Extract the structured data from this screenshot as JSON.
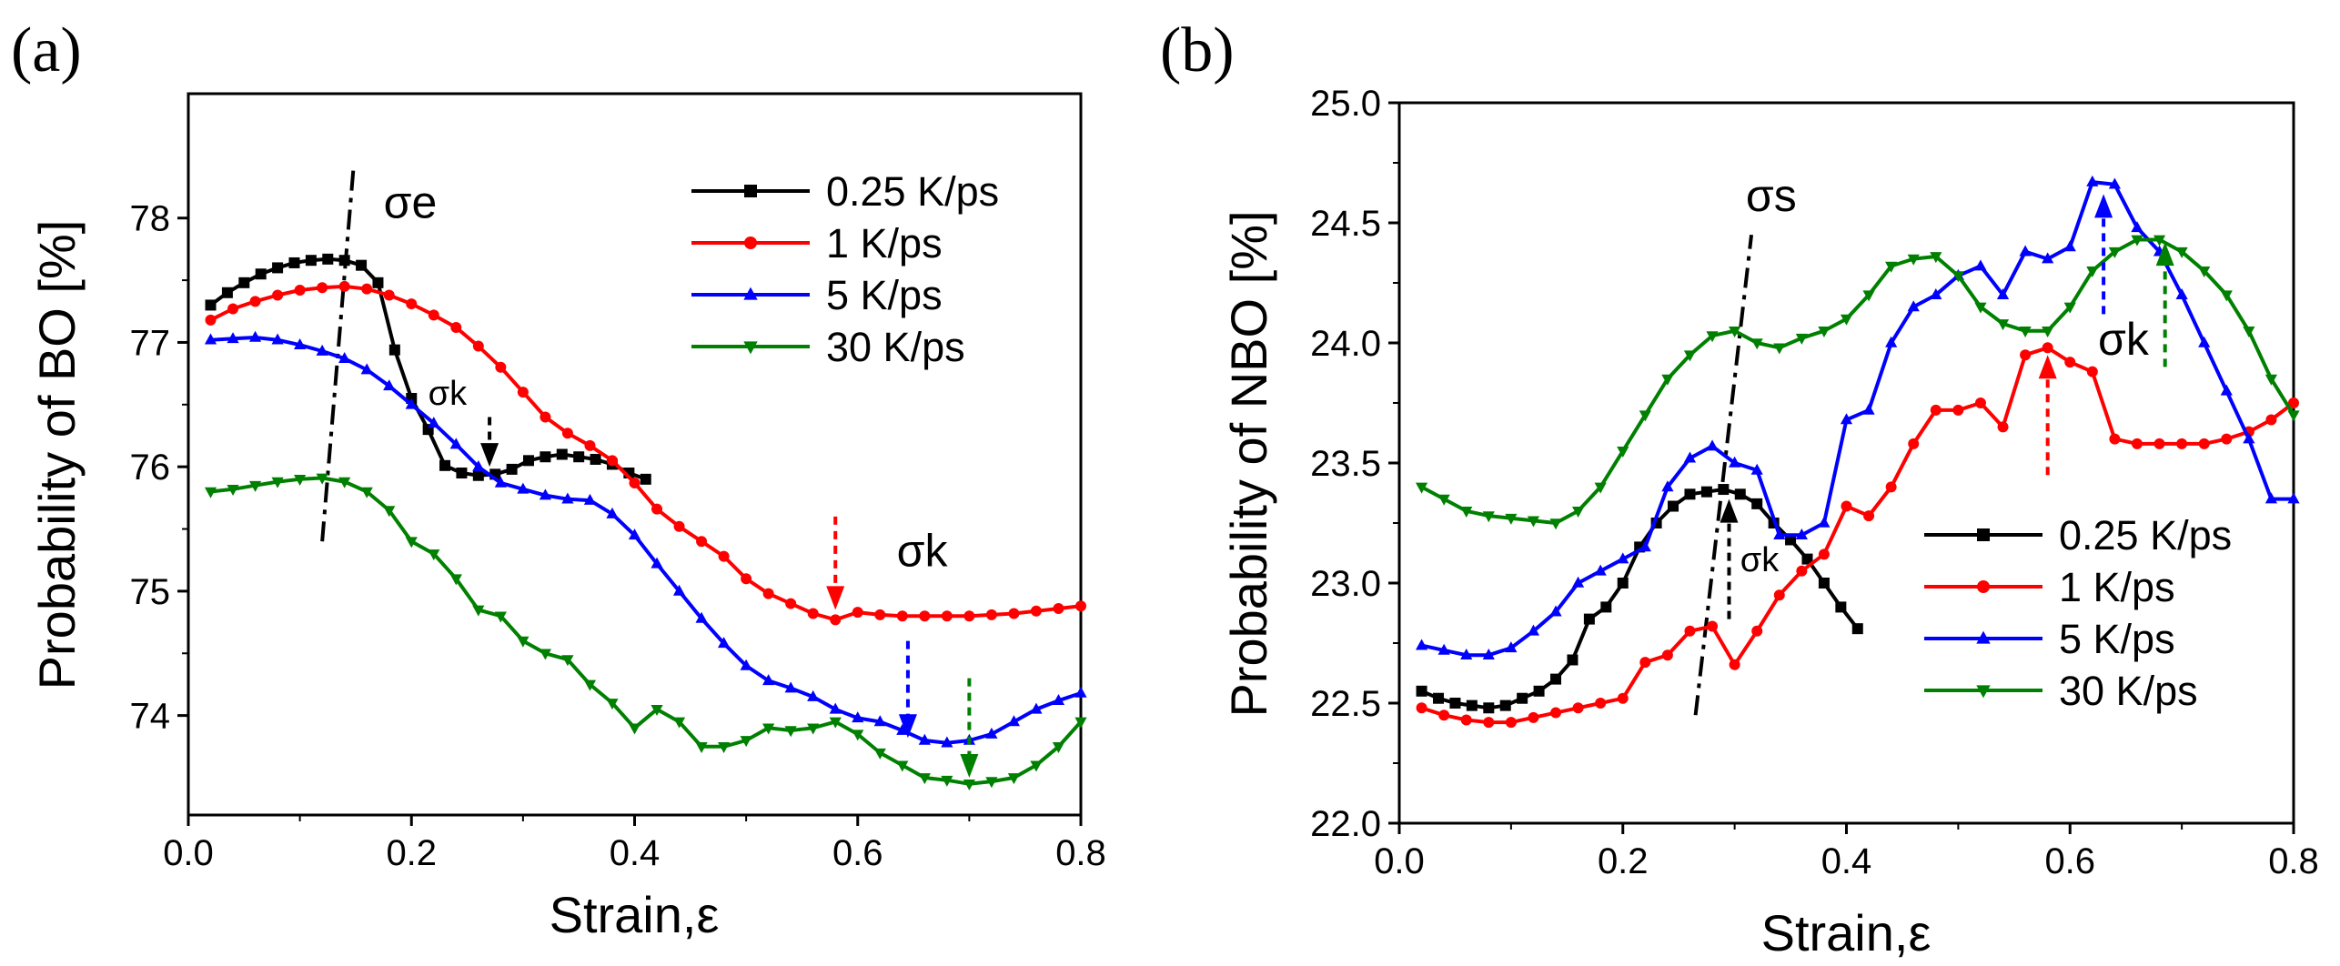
{
  "chart_data": [
    {
      "type": "line",
      "panel_label": "(a)",
      "xlabel": "Strain,ε",
      "ylabel": "Probability of BO [%]",
      "xlim": [
        0.0,
        0.8
      ],
      "ylim": [
        73.2,
        79.0
      ],
      "xticks": [
        {
          "v": 0.0,
          "label": "0.0"
        },
        {
          "v": 0.2,
          "label": "0.2"
        },
        {
          "v": 0.4,
          "label": "0.4"
        },
        {
          "v": 0.6,
          "label": "0.6"
        },
        {
          "v": 0.8,
          "label": "0.8"
        }
      ],
      "yticks": [
        {
          "v": 74,
          "label": "74"
        },
        {
          "v": 75,
          "label": "75"
        },
        {
          "v": 76,
          "label": "76"
        },
        {
          "v": 77,
          "label": "77"
        },
        {
          "v": 78,
          "label": "78"
        }
      ],
      "legend": {
        "position": "top-right"
      },
      "series": [
        {
          "name": "0.25 K/ps",
          "color": "#000000",
          "marker": "square",
          "x": [
            0.02,
            0.035,
            0.05,
            0.065,
            0.08,
            0.095,
            0.11,
            0.125,
            0.14,
            0.155,
            0.17,
            0.185,
            0.2,
            0.215,
            0.23,
            0.245,
            0.26,
            0.275,
            0.29,
            0.305,
            0.32,
            0.335,
            0.35,
            0.365,
            0.38,
            0.395,
            0.41
          ],
          "y": [
            77.3,
            77.4,
            77.48,
            77.55,
            77.6,
            77.64,
            77.66,
            77.67,
            77.66,
            77.62,
            77.48,
            76.94,
            76.55,
            76.3,
            76.01,
            75.95,
            75.93,
            75.94,
            75.98,
            76.05,
            76.08,
            76.1,
            76.08,
            76.06,
            76.02,
            75.95,
            75.9
          ]
        },
        {
          "name": "1 K/ps",
          "color": "#ff0000",
          "marker": "circle",
          "x": [
            0.02,
            0.04,
            0.06,
            0.08,
            0.1,
            0.12,
            0.14,
            0.16,
            0.18,
            0.2,
            0.22,
            0.24,
            0.26,
            0.28,
            0.3,
            0.32,
            0.34,
            0.36,
            0.38,
            0.4,
            0.42,
            0.44,
            0.46,
            0.48,
            0.5,
            0.52,
            0.54,
            0.56,
            0.58,
            0.6,
            0.62,
            0.64,
            0.66,
            0.68,
            0.7,
            0.72,
            0.74,
            0.76,
            0.78,
            0.8
          ],
          "y": [
            77.18,
            77.27,
            77.33,
            77.38,
            77.42,
            77.44,
            77.45,
            77.43,
            77.38,
            77.31,
            77.22,
            77.12,
            76.97,
            76.8,
            76.6,
            76.4,
            76.27,
            76.17,
            76.05,
            75.87,
            75.66,
            75.52,
            75.4,
            75.28,
            75.1,
            74.98,
            74.9,
            74.82,
            74.77,
            74.83,
            74.81,
            74.8,
            74.8,
            74.8,
            74.8,
            74.81,
            74.82,
            74.84,
            74.86,
            74.88
          ]
        },
        {
          "name": "5 K/ps",
          "color": "#0000ff",
          "marker": "triangle-up",
          "x": [
            0.02,
            0.04,
            0.06,
            0.08,
            0.1,
            0.12,
            0.14,
            0.16,
            0.18,
            0.2,
            0.22,
            0.24,
            0.26,
            0.28,
            0.3,
            0.32,
            0.34,
            0.36,
            0.38,
            0.4,
            0.42,
            0.44,
            0.46,
            0.48,
            0.5,
            0.52,
            0.54,
            0.56,
            0.58,
            0.6,
            0.62,
            0.64,
            0.66,
            0.68,
            0.7,
            0.72,
            0.74,
            0.76,
            0.78,
            0.8
          ],
          "y": [
            77.02,
            77.03,
            77.04,
            77.02,
            76.98,
            76.93,
            76.87,
            76.78,
            76.65,
            76.5,
            76.35,
            76.18,
            76.0,
            75.87,
            75.82,
            75.77,
            75.74,
            75.73,
            75.62,
            75.45,
            75.22,
            75.0,
            74.78,
            74.58,
            74.4,
            74.28,
            74.22,
            74.15,
            74.05,
            73.98,
            73.95,
            73.88,
            73.8,
            73.78,
            73.8,
            73.85,
            73.95,
            74.05,
            74.12,
            74.18
          ]
        },
        {
          "name": "30 K/ps",
          "color": "#008000",
          "marker": "triangle-down",
          "x": [
            0.02,
            0.04,
            0.06,
            0.08,
            0.1,
            0.12,
            0.14,
            0.16,
            0.18,
            0.2,
            0.22,
            0.24,
            0.26,
            0.28,
            0.3,
            0.32,
            0.34,
            0.36,
            0.38,
            0.4,
            0.42,
            0.44,
            0.46,
            0.48,
            0.5,
            0.52,
            0.54,
            0.56,
            0.58,
            0.6,
            0.62,
            0.64,
            0.66,
            0.68,
            0.7,
            0.72,
            0.74,
            0.76,
            0.78,
            0.8
          ],
          "y": [
            75.8,
            75.82,
            75.85,
            75.88,
            75.9,
            75.91,
            75.88,
            75.8,
            75.65,
            75.4,
            75.3,
            75.1,
            74.85,
            74.8,
            74.6,
            74.5,
            74.45,
            74.25,
            74.1,
            73.9,
            74.05,
            73.95,
            73.75,
            73.75,
            73.8,
            73.9,
            73.88,
            73.9,
            73.95,
            73.85,
            73.7,
            73.6,
            73.5,
            73.48,
            73.45,
            73.47,
            73.5,
            73.6,
            73.75,
            73.95
          ]
        }
      ],
      "annotations": [
        {
          "text": "σe",
          "x": 0.175,
          "y": 78.0
        },
        {
          "text": "σk",
          "x": 0.215,
          "y": 76.5
        },
        {
          "text": "σk",
          "x": 0.635,
          "y": 75.2
        }
      ],
      "markers": [
        {
          "x": 0.27,
          "y1": 76.4,
          "y2": 76.0,
          "color": "#000000"
        },
        {
          "x": 0.58,
          "y1": 75.6,
          "y2": 74.85,
          "color": "#ff0000"
        },
        {
          "x": 0.645,
          "y1": 74.6,
          "y2": 73.82,
          "color": "#0000ff"
        },
        {
          "x": 0.7,
          "y1": 74.3,
          "y2": 73.5,
          "color": "#008000"
        }
      ],
      "guide_line": {
        "x1": 0.12,
        "y1": 75.4,
        "x2": 0.148,
        "y2": 78.4
      }
    },
    {
      "type": "line",
      "panel_label": "(b)",
      "xlabel": "Strain,ε",
      "ylabel": "Probability of NBO [%]",
      "xlim": [
        0.0,
        0.8
      ],
      "ylim": [
        22.0,
        25.0
      ],
      "xticks": [
        {
          "v": 0.0,
          "label": "0.0"
        },
        {
          "v": 0.2,
          "label": "0.2"
        },
        {
          "v": 0.4,
          "label": "0.4"
        },
        {
          "v": 0.6,
          "label": "0.6"
        },
        {
          "v": 0.8,
          "label": "0.8"
        }
      ],
      "yticks": [
        {
          "v": 22.0,
          "label": "22.0"
        },
        {
          "v": 22.5,
          "label": "22.5"
        },
        {
          "v": 23.0,
          "label": "23.0"
        },
        {
          "v": 23.5,
          "label": "23.5"
        },
        {
          "v": 24.0,
          "label": "24.0"
        },
        {
          "v": 24.5,
          "label": "24.5"
        },
        {
          "v": 25.0,
          "label": "25.0"
        }
      ],
      "legend": {
        "position": "bottom-right"
      },
      "series": [
        {
          "name": "0.25 K/ps",
          "color": "#000000",
          "marker": "square",
          "x": [
            0.02,
            0.035,
            0.05,
            0.065,
            0.08,
            0.095,
            0.11,
            0.125,
            0.14,
            0.155,
            0.17,
            0.185,
            0.2,
            0.215,
            0.23,
            0.245,
            0.26,
            0.275,
            0.29,
            0.305,
            0.32,
            0.335,
            0.35,
            0.365,
            0.38,
            0.395,
            0.41
          ],
          "y": [
            22.55,
            22.52,
            22.5,
            22.49,
            22.48,
            22.49,
            22.52,
            22.55,
            22.6,
            22.68,
            22.85,
            22.9,
            23.0,
            23.15,
            23.25,
            23.32,
            23.37,
            23.38,
            23.39,
            23.37,
            23.33,
            23.25,
            23.18,
            23.1,
            23.0,
            22.9,
            22.81
          ]
        },
        {
          "name": "1 K/ps",
          "color": "#ff0000",
          "marker": "circle",
          "x": [
            0.02,
            0.04,
            0.06,
            0.08,
            0.1,
            0.12,
            0.14,
            0.16,
            0.18,
            0.2,
            0.22,
            0.24,
            0.26,
            0.28,
            0.3,
            0.32,
            0.34,
            0.36,
            0.38,
            0.4,
            0.42,
            0.44,
            0.46,
            0.48,
            0.5,
            0.52,
            0.54,
            0.56,
            0.58,
            0.6,
            0.62,
            0.64,
            0.66,
            0.68,
            0.7,
            0.72,
            0.74,
            0.76,
            0.78,
            0.8
          ],
          "y": [
            22.48,
            22.45,
            22.43,
            22.42,
            22.42,
            22.44,
            22.46,
            22.48,
            22.5,
            22.52,
            22.67,
            22.7,
            22.8,
            22.82,
            22.66,
            22.8,
            22.95,
            23.05,
            23.12,
            23.32,
            23.28,
            23.4,
            23.58,
            23.72,
            23.72,
            23.75,
            23.65,
            23.95,
            23.98,
            23.92,
            23.88,
            23.6,
            23.58,
            23.58,
            23.58,
            23.58,
            23.6,
            23.63,
            23.68,
            23.75
          ]
        },
        {
          "name": "5 K/ps",
          "color": "#0000ff",
          "marker": "triangle-up",
          "x": [
            0.02,
            0.04,
            0.06,
            0.08,
            0.1,
            0.12,
            0.14,
            0.16,
            0.18,
            0.2,
            0.22,
            0.24,
            0.26,
            0.28,
            0.3,
            0.32,
            0.34,
            0.36,
            0.38,
            0.4,
            0.42,
            0.44,
            0.46,
            0.48,
            0.5,
            0.52,
            0.54,
            0.56,
            0.58,
            0.6,
            0.62,
            0.64,
            0.66,
            0.68,
            0.7,
            0.72,
            0.74,
            0.76,
            0.78,
            0.8
          ],
          "y": [
            22.74,
            22.72,
            22.7,
            22.7,
            22.73,
            22.8,
            22.88,
            23.0,
            23.05,
            23.1,
            23.15,
            23.4,
            23.52,
            23.57,
            23.5,
            23.47,
            23.2,
            23.2,
            23.25,
            23.68,
            23.72,
            24.0,
            24.15,
            24.2,
            24.28,
            24.32,
            24.2,
            24.38,
            24.35,
            24.4,
            24.67,
            24.66,
            24.48,
            24.38,
            24.2,
            24.0,
            23.8,
            23.6,
            23.35,
            23.35
          ]
        },
        {
          "name": "30 K/ps",
          "color": "#008000",
          "marker": "triangle-down",
          "x": [
            0.02,
            0.04,
            0.06,
            0.08,
            0.1,
            0.12,
            0.14,
            0.16,
            0.18,
            0.2,
            0.22,
            0.24,
            0.26,
            0.28,
            0.3,
            0.32,
            0.34,
            0.36,
            0.38,
            0.4,
            0.42,
            0.44,
            0.46,
            0.48,
            0.5,
            0.52,
            0.54,
            0.56,
            0.58,
            0.6,
            0.62,
            0.64,
            0.66,
            0.68,
            0.7,
            0.72,
            0.74,
            0.76,
            0.78,
            0.8
          ],
          "y": [
            23.4,
            23.35,
            23.3,
            23.28,
            23.27,
            23.26,
            23.25,
            23.3,
            23.4,
            23.55,
            23.7,
            23.85,
            23.95,
            24.03,
            24.05,
            24.0,
            23.98,
            24.02,
            24.05,
            24.1,
            24.2,
            24.32,
            24.35,
            24.36,
            24.28,
            24.15,
            24.08,
            24.05,
            24.05,
            24.15,
            24.3,
            24.38,
            24.43,
            24.43,
            24.38,
            24.3,
            24.2,
            24.05,
            23.85,
            23.7
          ]
        }
      ],
      "annotations": [
        {
          "text": "σs",
          "x": 0.31,
          "y": 24.55
        },
        {
          "text": "σk",
          "x": 0.305,
          "y": 23.05
        },
        {
          "text": "σk",
          "x": 0.625,
          "y": 23.95
        }
      ],
      "markers": [
        {
          "x": 0.295,
          "y1": 22.85,
          "y2": 23.35,
          "color": "#000000"
        },
        {
          "x": 0.58,
          "y1": 23.45,
          "y2": 23.95,
          "color": "#ff0000"
        },
        {
          "x": 0.63,
          "y1": 24.12,
          "y2": 24.62,
          "color": "#0000ff"
        },
        {
          "x": 0.685,
          "y1": 23.9,
          "y2": 24.42,
          "color": "#008000"
        }
      ],
      "guide_line": {
        "x1": 0.265,
        "y1": 22.45,
        "x2": 0.315,
        "y2": 24.45
      }
    }
  ]
}
